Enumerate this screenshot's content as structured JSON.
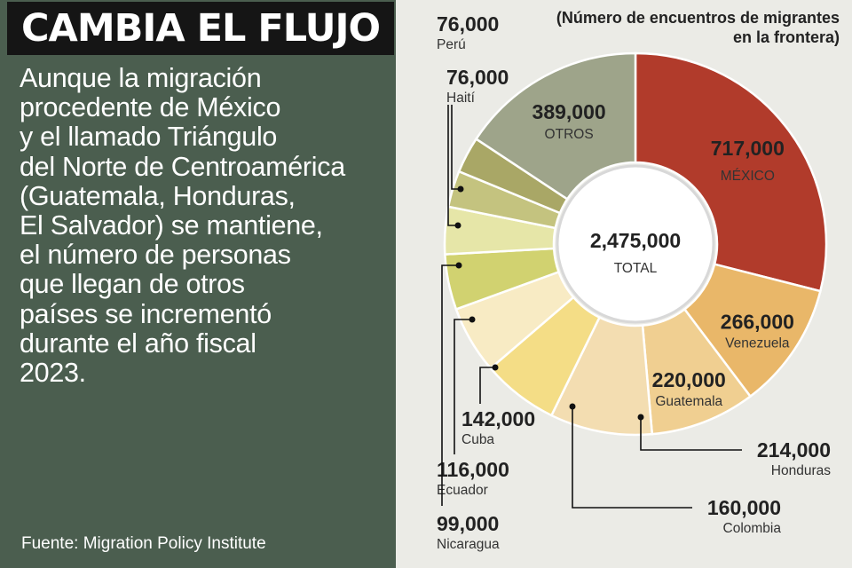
{
  "title": "CAMBIA EL FLUJO",
  "body_lines": [
    "Aunque la migración",
    "procedente de México",
    "y el llamado Triángulo",
    "del Norte de Centroamérica",
    "(Guatemala, Honduras,",
    "El Salvador) se mantiene,",
    "el número de personas",
    "que llegan de otros",
    "países se incrementó",
    "durante el año fiscal",
    "2023."
  ],
  "source": "Fuente: Migration Policy Institute",
  "chart_data": {
    "type": "pie",
    "subtitle_lines": [
      "(Número de encuentros de migrantes",
      "en la frontera)"
    ],
    "total_value": "2,475,000",
    "total_label": "TOTAL",
    "slices": [
      {
        "name": "MÉXICO",
        "value": 717000,
        "label": "717,000",
        "color": "#b13b2b"
      },
      {
        "name": "Venezuela",
        "value": 266000,
        "label": "266,000",
        "color": "#e9b769"
      },
      {
        "name": "Guatemala",
        "value": 220000,
        "label": "220,000",
        "color": "#f0cf91"
      },
      {
        "name": "Honduras",
        "value": 214000,
        "label": "214,000",
        "color": "#f3ddb1"
      },
      {
        "name": "Colombia",
        "value": 160000,
        "label": "160,000",
        "color": "#f4dd86"
      },
      {
        "name": "Cuba",
        "value": 142000,
        "label": "142,000",
        "color": "#f8ebc4"
      },
      {
        "name": "Ecuador",
        "value": 116000,
        "label": "116,000",
        "color": "#d1d270"
      },
      {
        "name": "Nicaragua",
        "value": 99000,
        "label": "99,000",
        "color": "#e6e6a8"
      },
      {
        "name": "Haití",
        "value": 76000,
        "label": "76,000",
        "color": "#c4c37f"
      },
      {
        "name": "Perú",
        "value": 76000,
        "label": "76,000",
        "color": "#a9a766"
      },
      {
        "name": "OTROS",
        "value": 389000,
        "label": "389,000",
        "color": "#9ea48a"
      }
    ]
  }
}
